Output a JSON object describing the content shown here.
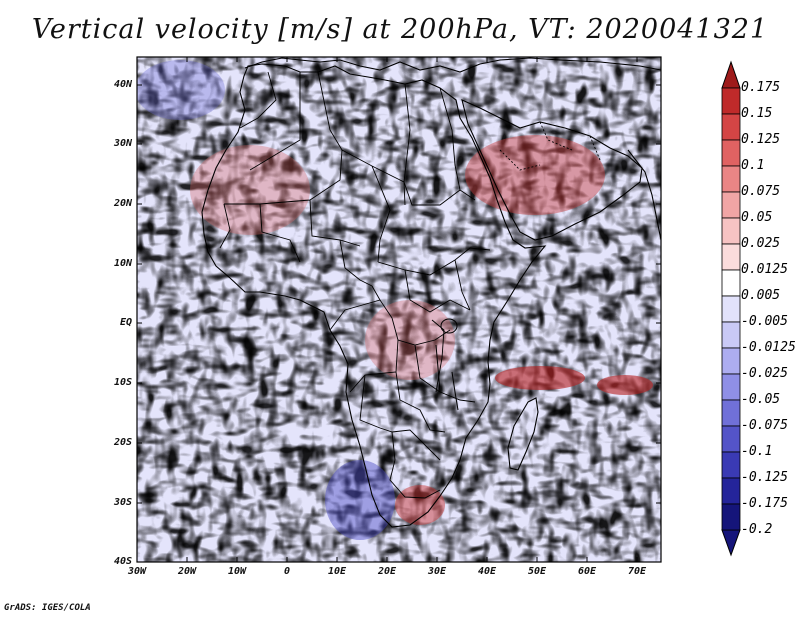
{
  "title": "Vertical velocity [m/s] at 200hPa, VT: 2020041321",
  "credit": "GrADS: IGES/COLA",
  "axes": {
    "lat_labels": [
      "40N",
      "30N",
      "20N",
      "10N",
      "EQ",
      "10S",
      "20S",
      "30S",
      "40S"
    ],
    "lon_labels": [
      "30W",
      "20W",
      "10W",
      "0",
      "10E",
      "20E",
      "30E",
      "40E",
      "50E",
      "60E",
      "70E"
    ]
  },
  "colorbar": {
    "labels": [
      "0.175",
      "0.15",
      "0.125",
      "0.1",
      "0.075",
      "0.05",
      "0.025",
      "0.0125",
      "0.005",
      "-0.005",
      "-0.0125",
      "-0.025",
      "-0.05",
      "-0.075",
      "-0.1",
      "-0.125",
      "-0.175",
      "-0.2"
    ],
    "colors": [
      "#9e1a1a",
      "#bf2a2a",
      "#d44545",
      "#e06262",
      "#ea8585",
      "#f1a5a5",
      "#f7c3c3",
      "#fbdcdc",
      "#ffffff",
      "#e2e2fb",
      "#c9c9f6",
      "#adadf0",
      "#8f8fe6",
      "#7070d8",
      "#5454c8",
      "#3a3ab4",
      "#24249a",
      "#15157a"
    ]
  },
  "colors": {
    "red": "#c82020",
    "blue": "#2020b8",
    "land_line": "#000000"
  }
}
